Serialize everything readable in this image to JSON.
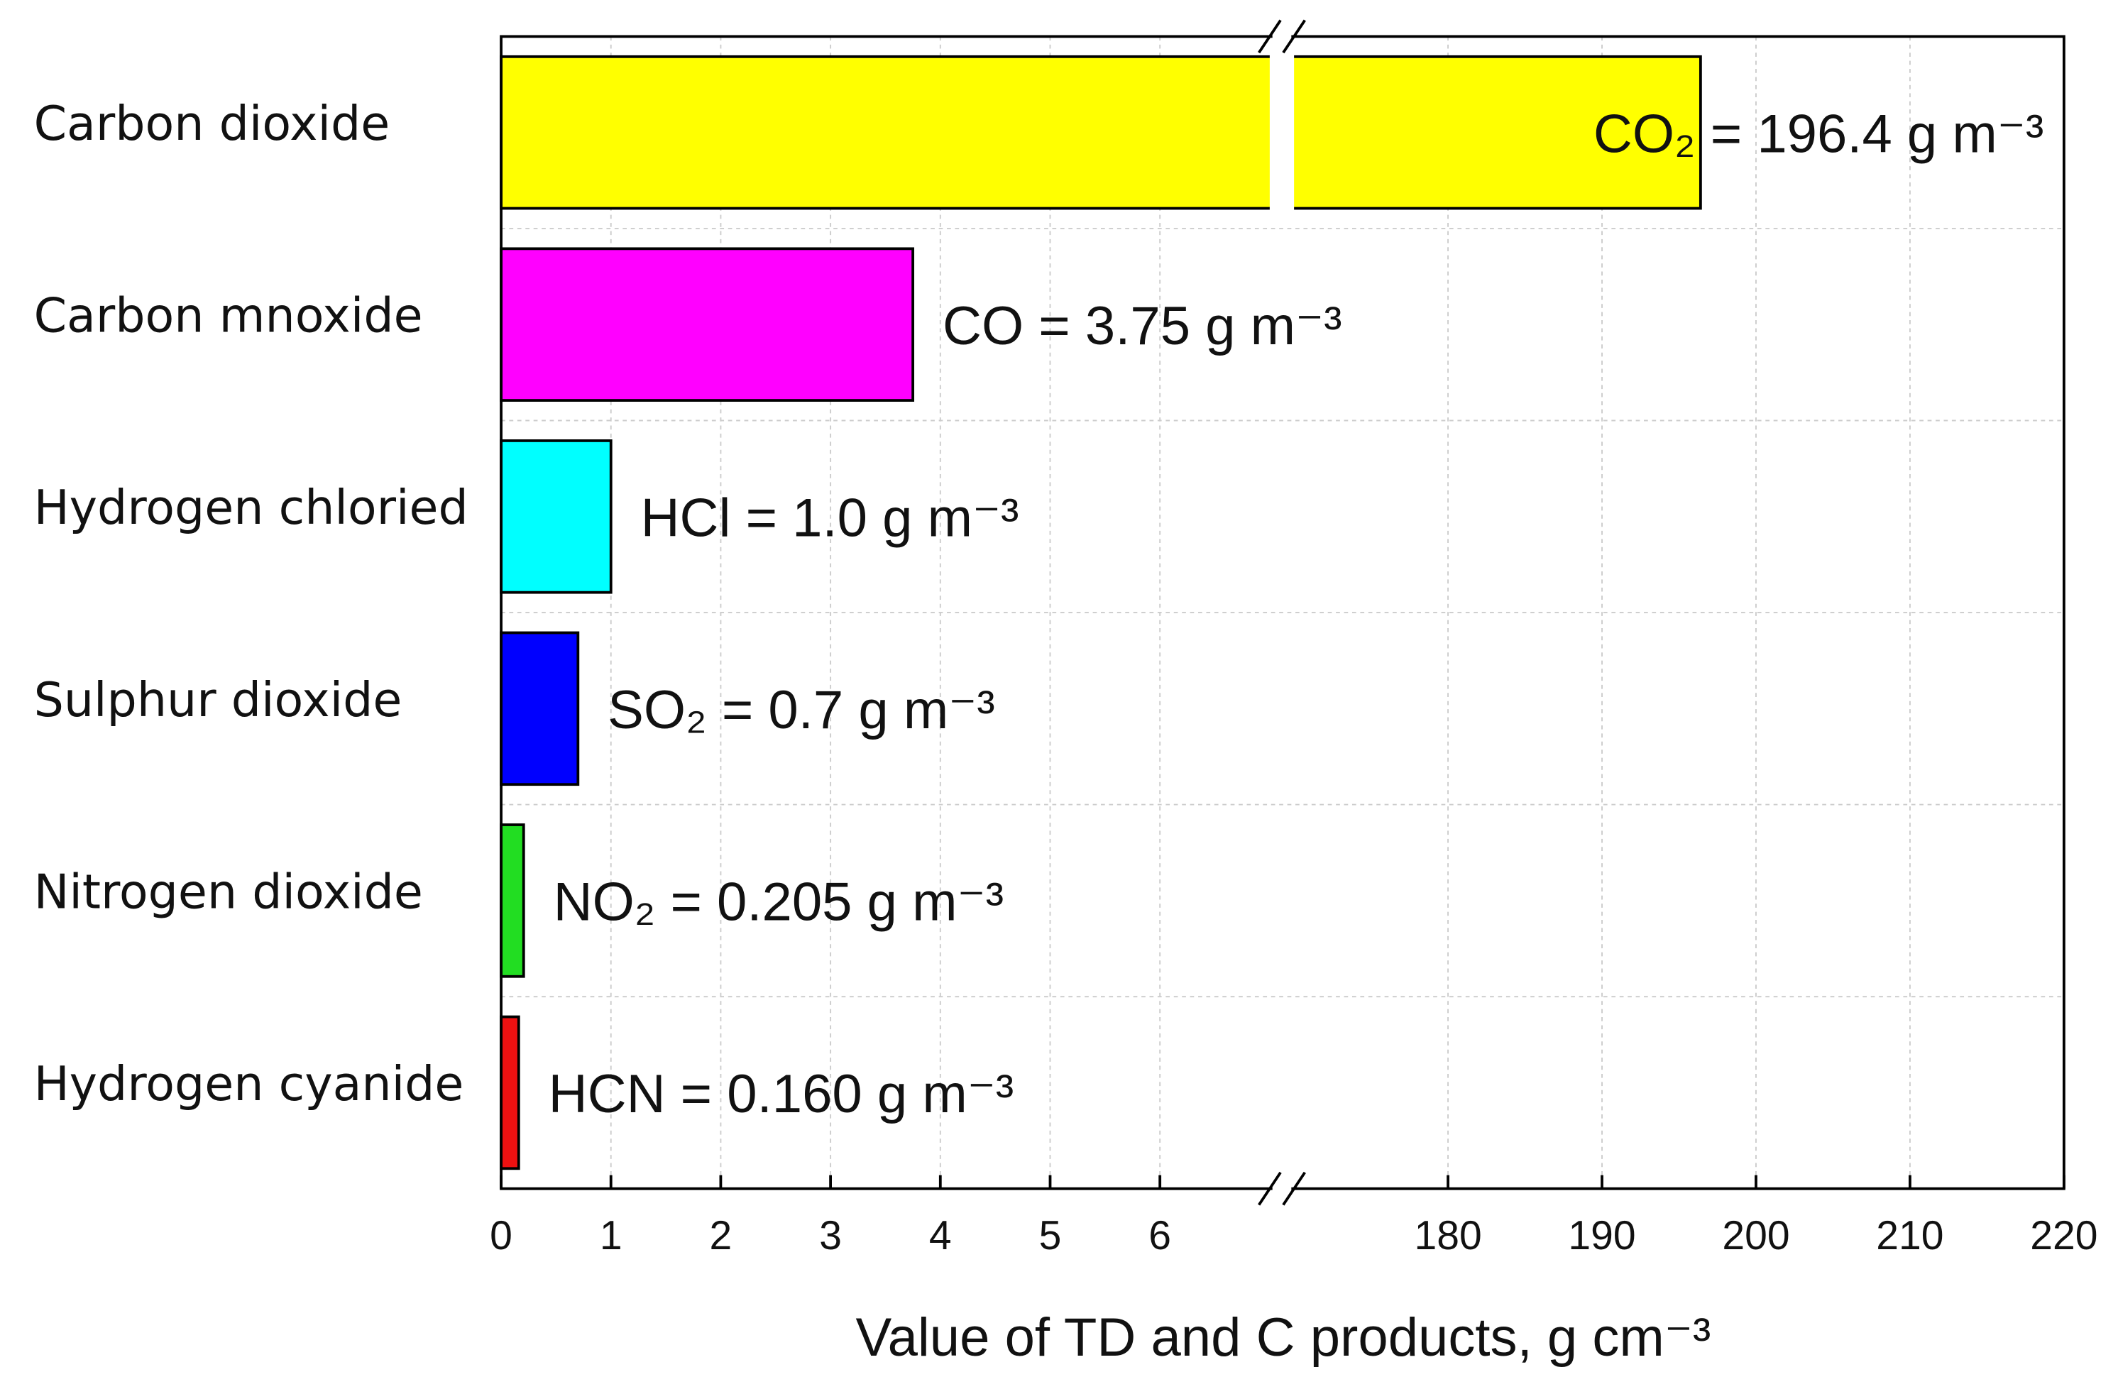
{
  "chart_data": {
    "type": "bar",
    "orientation": "horizontal",
    "x_label": "Value of TD and C products,  g cm⁻³",
    "categories": [
      "Carbon dioxide",
      "Carbon mnoxide",
      "Hydrogen chloried",
      "Sulphur dioxide",
      "Nitrogen dioxide",
      "Hydrogen cyanide"
    ],
    "values": [
      196.4,
      3.75,
      1.0,
      0.7,
      0.205,
      0.16
    ],
    "value_labels": [
      "CO₂ = 196.4 g m⁻³",
      "CO = 3.75 g m⁻³",
      "HCl = 1.0 g m⁻³",
      "SO₂ = 0.7 g m⁻³",
      "NO₂ = 0.205 g m⁻³",
      "HCN = 0.160 g m⁻³"
    ],
    "colors": [
      "#ffff00",
      "#ff00ff",
      "#00ffff",
      "#0000ff",
      "#22dd22",
      "#ee1111"
    ],
    "xlim": [
      0,
      220
    ],
    "xbreak": [
      7,
      170
    ],
    "xticks": [
      0,
      1,
      2,
      3,
      4,
      5,
      6,
      180,
      190,
      200,
      210,
      220
    ],
    "grid": true
  }
}
